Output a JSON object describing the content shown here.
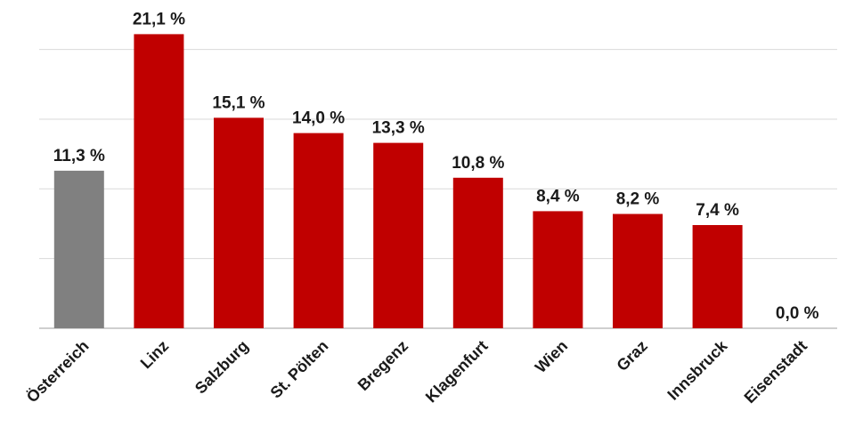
{
  "chart_data": {
    "type": "bar",
    "title": "",
    "xlabel": "",
    "ylabel": "",
    "ylim": [
      0,
      22
    ],
    "grid": true,
    "gridlines": [
      0,
      5,
      10,
      15,
      20
    ],
    "categories": [
      "Österreich",
      "Linz",
      "Salzburg",
      "St. Pölten",
      "Bregenz",
      "Klagenfurt",
      "Wien",
      "Graz",
      "Innsbruck",
      "Eisenstadt"
    ],
    "values": [
      11.3,
      21.1,
      15.1,
      14.0,
      13.3,
      10.8,
      8.4,
      8.2,
      7.4,
      0.0
    ],
    "labels": [
      "11,3 %",
      "21,1 %",
      "15,1 %",
      "14,0 %",
      "13,3 %",
      "10,8 %",
      "8,4 %",
      "8,2 %",
      "7,4 %",
      "0,0 %"
    ],
    "colors": [
      "#808080",
      "#c00000",
      "#c00000",
      "#c00000",
      "#c00000",
      "#c00000",
      "#c00000",
      "#c00000",
      "#c00000",
      "#c00000"
    ]
  }
}
